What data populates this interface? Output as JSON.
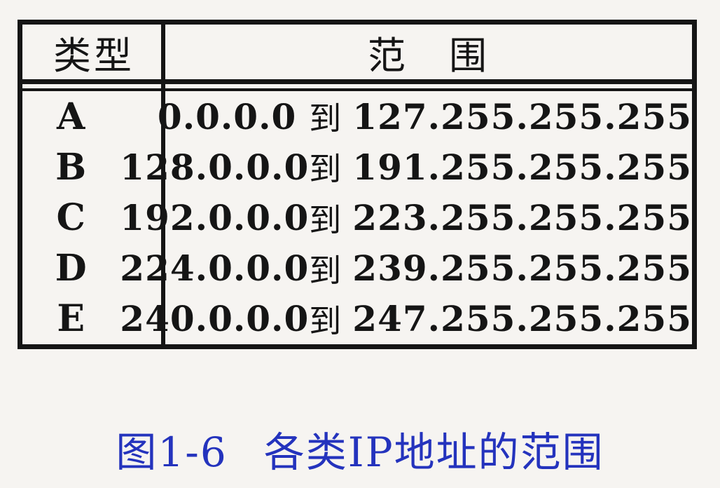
{
  "figure": {
    "table": {
      "header": {
        "type": "类型",
        "range": "范　围"
      },
      "to_label": "到",
      "rows": [
        {
          "type": "A",
          "start": "0.0.0.0",
          "end": "127.255.255.255"
        },
        {
          "type": "B",
          "start": "128.0.0.0",
          "end": "191.255.255.255"
        },
        {
          "type": "C",
          "start": "192.0.0.0",
          "end": "223.255.255.255"
        },
        {
          "type": "D",
          "start": "224.0.0.0",
          "end": "239.255.255.255"
        },
        {
          "type": "E",
          "start": "240.0.0.0",
          "end": "247.255.255.255"
        }
      ]
    },
    "caption": {
      "label": "图1-6",
      "title": "各类IP地址的范围"
    },
    "colors": {
      "ink": "#151515",
      "caption_blue": "#2433bd",
      "background": "#f6f4f1"
    }
  }
}
